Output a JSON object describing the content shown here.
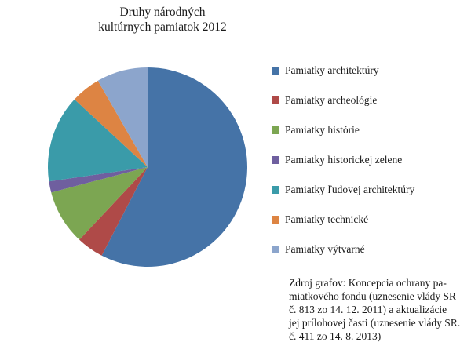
{
  "title": {
    "line1": "Druhy národných",
    "line2": "kultúrnych pamiatok 2012"
  },
  "chart_data": {
    "type": "pie",
    "title": "Druhy národných kultúrnych pamiatok 2012",
    "labels": [
      "Pamiatky architektúry",
      "Pamiatky archeológie",
      "Pamiatky histórie",
      "Pamiatky historickej zelene",
      "Pamiatky ľudovej architektúry",
      "Pamiatky technické",
      "Pamiatky výtvarné"
    ],
    "values": [
      57.6,
      4.4,
      8.9,
      1.8,
      14.2,
      4.8,
      8.3
    ],
    "unit": "percent (estimated from slice angles)",
    "colors": [
      "#4573A7",
      "#AF4A48",
      "#7CA652",
      "#6F5F9F",
      "#3A9BA9",
      "#DD8443",
      "#8CA5CC"
    ],
    "start_angle_deg": 0,
    "direction": "clockwise",
    "legend_position": "right",
    "data_labels": false
  },
  "source": {
    "lines": [
      "Zdroj grafov: Koncepcia ochrany pa-",
      "miatkového fondu (uznesenie vlády SR",
      "č. 813 zo 14. 12. 2011) a aktualizácie",
      "jej prílohovej časti (uznesenie vlády SR.",
      "č. 411 zo 14. 8. 2013)"
    ]
  }
}
